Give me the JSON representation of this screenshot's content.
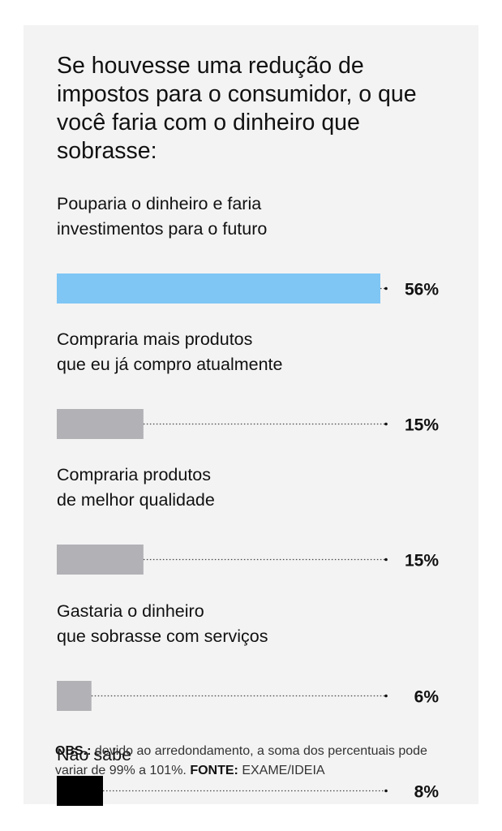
{
  "chart_data": {
    "type": "bar",
    "orientation": "horizontal",
    "title": "Se houvesse uma redução de impostos para o consumidor, o que você faria com o dinheiro que sobrasse:",
    "categories": [
      [
        "Pouparia o dinheiro e faria",
        "investimentos para o futuro"
      ],
      [
        "Compraria mais produtos",
        "que eu já compro atualmente"
      ],
      [
        "Compraria produtos",
        "de melhor qualidade"
      ],
      [
        "Gastaria o dinheiro",
        "que sobrasse com serviços"
      ],
      [
        "Não sabe"
      ]
    ],
    "values": [
      56,
      15,
      15,
      6,
      8
    ],
    "value_labels": [
      "56%",
      "15%",
      "15%",
      "6%",
      "8%"
    ],
    "colors": [
      "#7fc6f5",
      "#b2b1b6",
      "#b2b1b6",
      "#b2b1b6",
      "#000000"
    ],
    "xlim": [
      0,
      56
    ],
    "grid": false,
    "legend": "none"
  },
  "note": {
    "obs_label": "OBS.:",
    "obs_text": " devido ao arredondamento, a soma dos percentuais pode variar de 99% a 101%. ",
    "source_label": "FONTE:",
    "source_text": " EXAME/IDEIA"
  }
}
